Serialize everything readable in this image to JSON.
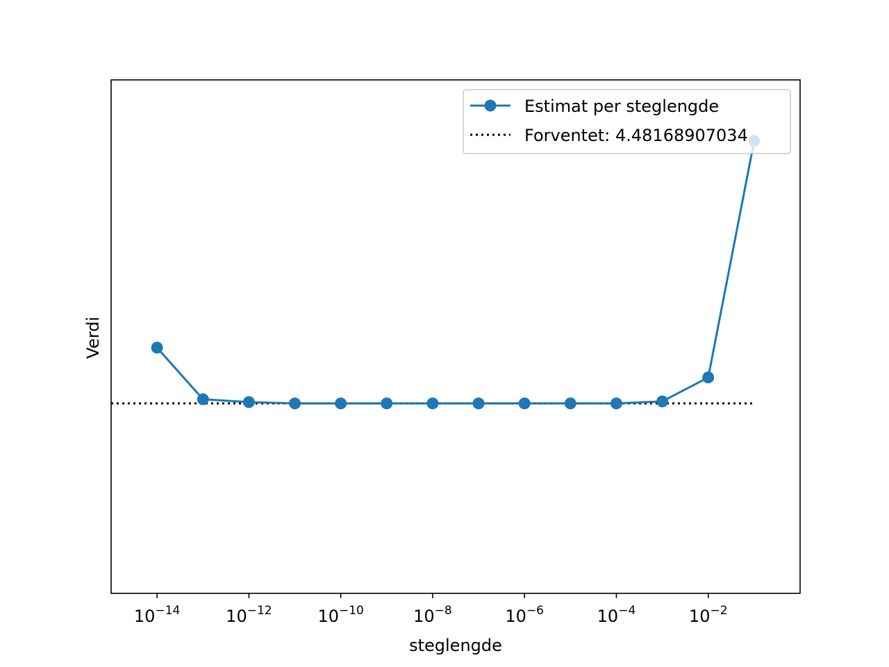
{
  "chart_data": {
    "type": "line",
    "xscale": "log",
    "xlabel": "steglengde",
    "ylabel": "Verdi",
    "xlim": [
      1e-15,
      1.0
    ],
    "ylim": [
      4.06,
      5.2
    ],
    "x_ticks": [
      {
        "value": 1e-14,
        "base": "10",
        "exp": "−14"
      },
      {
        "value": 1e-12,
        "base": "10",
        "exp": "−12"
      },
      {
        "value": 1e-10,
        "base": "10",
        "exp": "−10"
      },
      {
        "value": 1e-08,
        "base": "10",
        "exp": "−8"
      },
      {
        "value": 1e-06,
        "base": "10",
        "exp": "−6"
      },
      {
        "value": 0.0001,
        "base": "10",
        "exp": "−4"
      },
      {
        "value": 0.01,
        "base": "10",
        "exp": "−2"
      }
    ],
    "y_ticks": [],
    "grid": false,
    "legend_position": "top-right",
    "series": [
      {
        "name": "Estimat per steglengde",
        "style": "solid-line-with-circle-markers",
        "color": "#1f77b4",
        "x": [
          1e-14,
          1e-13,
          1e-12,
          1e-11,
          1e-10,
          1e-09,
          1e-08,
          1e-07,
          1e-06,
          1e-05,
          0.0001,
          0.001,
          0.01,
          0.1
        ],
        "y": [
          4.6055,
          4.4909,
          4.4846,
          4.4817,
          4.4817,
          4.4817,
          4.4817,
          4.4817,
          4.4817,
          4.4817,
          4.4817,
          4.4862,
          4.5394,
          5.0646
        ]
      }
    ],
    "reference_line": {
      "name": "Forventet: 4.48168907034",
      "style": "dotted",
      "color": "#000000",
      "y": 4.48168907034,
      "x_range": [
        1e-15,
        0.1
      ]
    }
  }
}
